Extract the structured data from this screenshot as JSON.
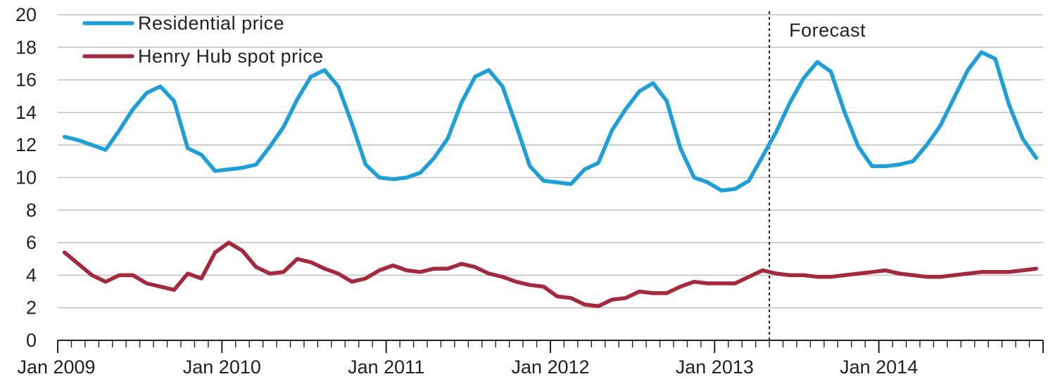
{
  "chart_data": {
    "type": "line",
    "ylim": [
      0,
      20
    ],
    "yticks": [
      0,
      2,
      4,
      6,
      8,
      10,
      12,
      14,
      16,
      18,
      20
    ],
    "x_start": "Jan 2009",
    "x_end": "Dec 2014",
    "xtick_labels": [
      "Jan 2009",
      "Jan 2010",
      "Jan 2011",
      "Jan 2012",
      "Jan 2013",
      "Jan 2014"
    ],
    "grid": "horizontal",
    "legend_position": "top-left",
    "annotations": [
      {
        "text": "Forecast",
        "x": "Apr 2013",
        "style": "dashed vertical line"
      }
    ],
    "series": [
      {
        "name": "Residential price",
        "color": "#1aa0dd",
        "values": [
          12.5,
          12.3,
          12.0,
          11.7,
          12.9,
          14.2,
          15.2,
          15.6,
          14.7,
          11.8,
          11.4,
          10.4,
          10.5,
          10.6,
          10.8,
          11.9,
          13.1,
          14.8,
          16.2,
          16.6,
          15.6,
          13.3,
          10.8,
          10.0,
          9.9,
          10.0,
          10.3,
          11.2,
          12.4,
          14.6,
          16.2,
          16.6,
          15.6,
          13.2,
          10.7,
          9.8,
          9.7,
          9.6,
          10.5,
          10.9,
          12.9,
          14.2,
          15.3,
          15.8,
          14.7,
          11.8,
          10.0,
          9.7,
          9.2,
          9.3,
          9.8,
          11.3,
          12.8,
          14.6,
          16.1,
          17.1,
          16.5,
          14.0,
          11.9,
          10.7,
          10.7,
          10.8,
          11.0,
          12.0,
          13.2,
          14.9,
          16.6,
          17.7,
          17.3,
          14.5,
          12.4,
          11.2
        ]
      },
      {
        "name": "Henry Hub spot price",
        "color": "#a8273d",
        "values": [
          5.4,
          4.7,
          4.0,
          3.6,
          4.0,
          4.0,
          3.5,
          3.3,
          3.1,
          4.1,
          3.8,
          5.4,
          6.0,
          5.5,
          4.5,
          4.1,
          4.2,
          5.0,
          4.8,
          4.4,
          4.1,
          3.6,
          3.8,
          4.3,
          4.6,
          4.3,
          4.2,
          4.4,
          4.4,
          4.7,
          4.5,
          4.1,
          3.9,
          3.6,
          3.4,
          3.3,
          2.7,
          2.6,
          2.2,
          2.1,
          2.5,
          2.6,
          3.0,
          2.9,
          2.9,
          3.3,
          3.6,
          3.5,
          3.5,
          3.5,
          3.9,
          4.3,
          4.1,
          4.0,
          4.0,
          3.9,
          3.9,
          4.0,
          4.1,
          4.2,
          4.3,
          4.1,
          4.0,
          3.9,
          3.9,
          4.0,
          4.1,
          4.2,
          4.2,
          4.2,
          4.3,
          4.4
        ]
      }
    ]
  }
}
